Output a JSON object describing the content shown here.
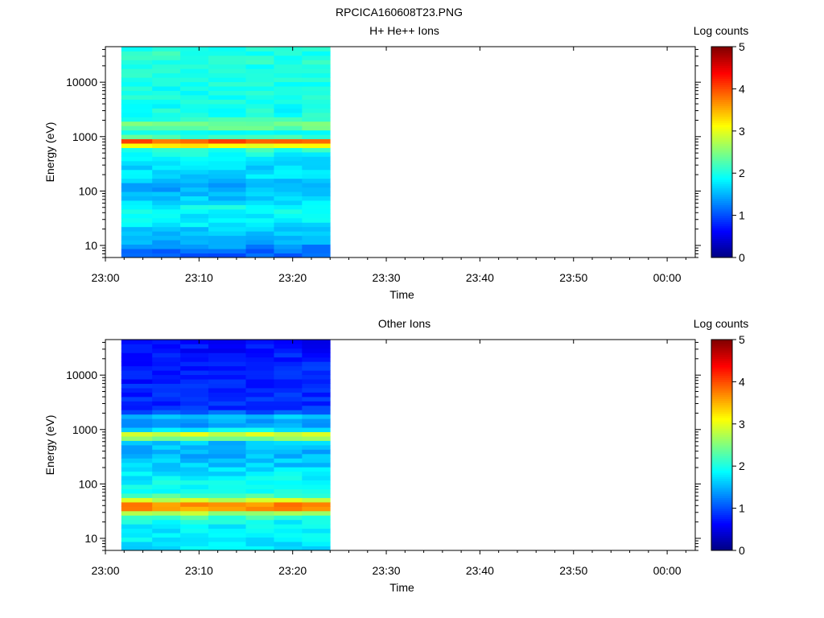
{
  "title": "RPCICA160608T23.PNG",
  "colors": {
    "colorbar": [
      "#00007f",
      "#0000ff",
      "#007fff",
      "#00ffff",
      "#7fff7f",
      "#ffff00",
      "#ff7f00",
      "#ff0000",
      "#7f0000"
    ]
  },
  "chart_data": [
    {
      "type": "heatmap",
      "title": "H+ He++ Ions",
      "xlabel": "Time",
      "ylabel": "Energy (eV)",
      "x_ticks": [
        "23:00",
        "23:10",
        "23:20",
        "23:30",
        "23:40",
        "23:50",
        "00:00"
      ],
      "x_range": [
        "23:00",
        "00:03"
      ],
      "y_ticks": [
        "10",
        "100",
        "1000",
        "10000"
      ],
      "y_range_eV": [
        6,
        45000
      ],
      "y_scale": "log",
      "data_time_range": [
        "23:01.7",
        "23:24"
      ],
      "time_bins": [
        "23:01.7",
        "23:05",
        "23:08",
        "23:11",
        "23:15",
        "23:18",
        "23:21"
      ],
      "colorbar": {
        "label": "Log counts",
        "min": 0,
        "max": 5,
        "ticks": [
          "0",
          "1",
          "2",
          "3",
          "4",
          "5"
        ]
      },
      "profile": [
        {
          "e": 7,
          "v": 1.1
        },
        {
          "e": 10,
          "v": 1.35
        },
        {
          "e": 15,
          "v": 1.5
        },
        {
          "e": 22,
          "v": 1.7
        },
        {
          "e": 30,
          "v": 1.9
        },
        {
          "e": 38,
          "v": 1.7
        },
        {
          "e": 46,
          "v": 2.1
        },
        {
          "e": 55,
          "v": 1.75
        },
        {
          "e": 80,
          "v": 1.6
        },
        {
          "e": 120,
          "v": 1.45
        },
        {
          "e": 200,
          "v": 1.75
        },
        {
          "e": 300,
          "v": 1.7
        },
        {
          "e": 450,
          "v": 1.85
        },
        {
          "e": 600,
          "v": 2.1
        },
        {
          "e": 700,
          "v": 3.3
        },
        {
          "e": 780,
          "v": 4.2
        },
        {
          "e": 850,
          "v": 3.8
        },
        {
          "e": 950,
          "v": 2.3
        },
        {
          "e": 1200,
          "v": 2.0
        },
        {
          "e": 1650,
          "v": 2.5
        },
        {
          "e": 2200,
          "v": 2.0
        },
        {
          "e": 4000,
          "v": 1.9
        },
        {
          "e": 8000,
          "v": 2.0
        },
        {
          "e": 16000,
          "v": 2.0
        },
        {
          "e": 30000,
          "v": 2.05
        },
        {
          "e": 45000,
          "v": 2.05
        }
      ]
    },
    {
      "type": "heatmap",
      "title": "Other Ions",
      "xlabel": "Time",
      "ylabel": "Energy (eV)",
      "x_ticks": [
        "23:00",
        "23:10",
        "23:20",
        "23:30",
        "23:40",
        "23:50",
        "00:00"
      ],
      "x_range": [
        "23:00",
        "00:03"
      ],
      "y_ticks": [
        "10",
        "100",
        "1000",
        "10000"
      ],
      "y_range_eV": [
        6,
        45000
      ],
      "y_scale": "log",
      "data_time_range": [
        "23:01.7",
        "23:24"
      ],
      "time_bins": [
        "23:01.7",
        "23:05",
        "23:08",
        "23:11",
        "23:15",
        "23:18",
        "23:21"
      ],
      "colorbar": {
        "label": "Log counts",
        "min": 0,
        "max": 5,
        "ticks": [
          "0",
          "1",
          "2",
          "3",
          "4",
          "5"
        ]
      },
      "profile": [
        {
          "e": 7,
          "v": 1.75
        },
        {
          "e": 12,
          "v": 1.8
        },
        {
          "e": 20,
          "v": 1.9
        },
        {
          "e": 27,
          "v": 2.3
        },
        {
          "e": 33,
          "v": 3.4
        },
        {
          "e": 38,
          "v": 3.9
        },
        {
          "e": 45,
          "v": 3.6
        },
        {
          "e": 55,
          "v": 2.4
        },
        {
          "e": 70,
          "v": 2.0
        },
        {
          "e": 100,
          "v": 1.9
        },
        {
          "e": 150,
          "v": 1.8
        },
        {
          "e": 250,
          "v": 1.6
        },
        {
          "e": 400,
          "v": 1.5
        },
        {
          "e": 600,
          "v": 1.6
        },
        {
          "e": 720,
          "v": 2.9
        },
        {
          "e": 800,
          "v": 3.2
        },
        {
          "e": 900,
          "v": 2.0
        },
        {
          "e": 1300,
          "v": 1.2
        },
        {
          "e": 1700,
          "v": 1.7
        },
        {
          "e": 2200,
          "v": 0.9
        },
        {
          "e": 4000,
          "v": 0.8
        },
        {
          "e": 8000,
          "v": 0.75
        },
        {
          "e": 15000,
          "v": 0.8
        },
        {
          "e": 30000,
          "v": 0.7
        },
        {
          "e": 45000,
          "v": 0.6
        }
      ]
    }
  ]
}
